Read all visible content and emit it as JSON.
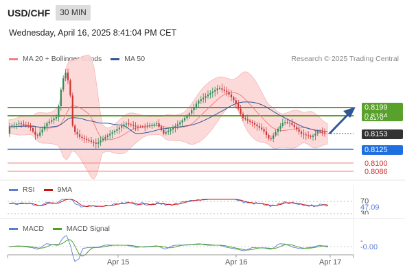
{
  "header": {
    "symbol": "USD/CHF",
    "timeframe": "30 MIN",
    "datetime": "Wednesday, April 16, 2025 8:41:04 PM CET"
  },
  "legend_main": [
    {
      "label": "MA 20 + Bollinger Bands",
      "color": "#f08080"
    },
    {
      "label": "MA 50",
      "color": "#2f5597"
    }
  ],
  "credit": "Research © 2025 Trading Central",
  "price_labels": {
    "r2": "0.8199",
    "r1": "0.8184",
    "r1_hidden": "0.8170",
    "last": "0.8153",
    "pivot": "0.8125",
    "s1": "0.8100",
    "s2": "0.8086"
  },
  "colors": {
    "resistance": "#5aa02c",
    "pivot": "#1e6fe0",
    "support": "#e05050",
    "last": "#333333",
    "bull": "#2e8b57",
    "bear": "#cc3333",
    "band": "#fcd0d0",
    "arrow": "#2f5597"
  },
  "rsi": {
    "legend": [
      {
        "label": "RSI",
        "color": "#5b7bd5"
      },
      {
        "label": "9MA",
        "color": "#d01010"
      }
    ],
    "levels": [
      "70",
      "30"
    ],
    "value": "47.09"
  },
  "macd": {
    "legend": [
      {
        "label": "MACD",
        "color": "#5b7bd5"
      },
      {
        "label": "MACD Signal",
        "color": "#4aa020"
      }
    ],
    "tick_top": "-",
    "value": "-0.00"
  },
  "xaxis": [
    "Apr 15",
    "Apr 16",
    "Apr 17"
  ]
}
